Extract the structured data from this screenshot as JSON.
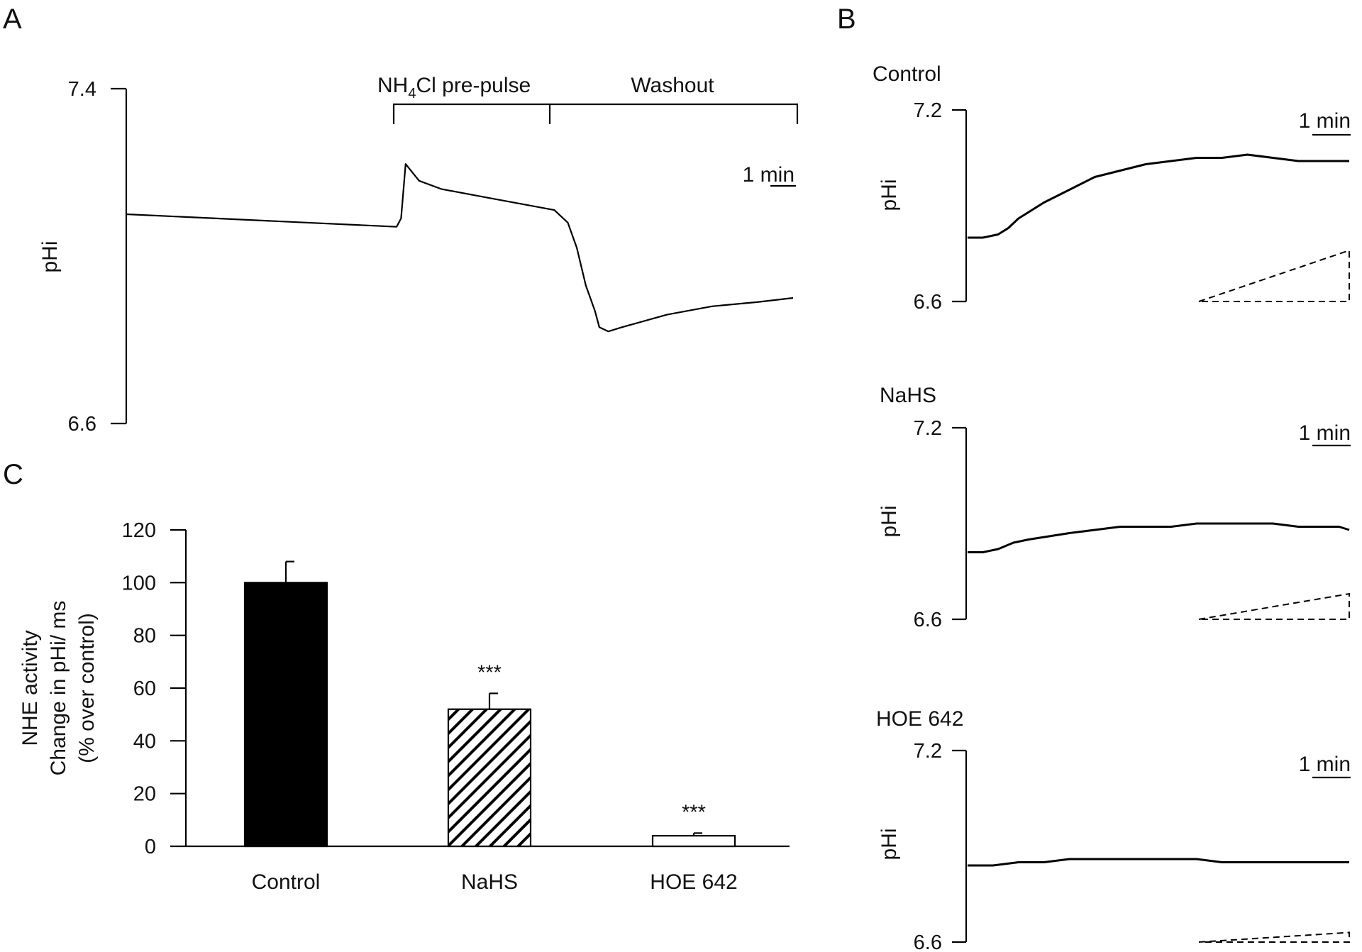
{
  "panel_labels": {
    "a": "A",
    "b": "B",
    "c": "C"
  },
  "chart_data": [
    {
      "id": "A",
      "type": "line",
      "ylabel": "pHi",
      "ylim": [
        6.6,
        7.4
      ],
      "yticks": [
        "7.4",
        "6.6"
      ],
      "x_unit": "min",
      "scale_bar": "1 min",
      "annotations": {
        "prepulse": {
          "pre": "NH",
          "sub": "4",
          "post": "Cl pre-pulse"
        },
        "washout": "Washout"
      },
      "series": [
        {
          "name": "pHi",
          "x": [
            0,
            2,
            4,
            6,
            6.1,
            6.2,
            6.5,
            7,
            8,
            9,
            9.5,
            9.8,
            10,
            10.2,
            10.4,
            10.5,
            10.7,
            11,
            12,
            13,
            14,
            14.8
          ],
          "y": [
            7.1,
            7.09,
            7.08,
            7.07,
            7.09,
            7.22,
            7.18,
            7.16,
            7.14,
            7.12,
            7.11,
            7.08,
            7.02,
            6.93,
            6.87,
            6.83,
            6.82,
            6.83,
            6.86,
            6.88,
            6.89,
            6.9
          ]
        }
      ]
    },
    {
      "id": "B-control",
      "type": "line",
      "title": "Control",
      "ylabel": "pHi",
      "ylim": [
        6.6,
        7.2
      ],
      "yticks": [
        "7.2",
        "6.6"
      ],
      "scale_bar": "1 min",
      "series": [
        {
          "name": "pHi",
          "x": [
            0,
            0.3,
            0.6,
            0.8,
            1.0,
            1.2,
            1.5,
            2.0,
            2.5,
            3.0,
            3.5,
            4.0,
            4.5,
            5.0,
            5.5,
            6.0,
            6.5,
            7.0,
            7.5
          ],
          "y": [
            6.8,
            6.8,
            6.81,
            6.83,
            6.86,
            6.88,
            6.91,
            6.95,
            6.99,
            7.01,
            7.03,
            7.04,
            7.05,
            7.05,
            7.06,
            7.05,
            7.04,
            7.04,
            7.04
          ]
        }
      ],
      "slope_y": [
        6.6,
        6.76
      ]
    },
    {
      "id": "B-nahs",
      "type": "line",
      "title": "NaHS",
      "ylabel": "pHi",
      "ylim": [
        6.6,
        7.2
      ],
      "yticks": [
        "7.2",
        "6.6"
      ],
      "scale_bar": "1 min",
      "series": [
        {
          "name": "pHi",
          "x": [
            0,
            0.3,
            0.6,
            0.9,
            1.2,
            1.6,
            2.0,
            2.5,
            3.0,
            3.5,
            4.0,
            4.5,
            5.0,
            5.5,
            6.0,
            6.5,
            7.0,
            7.3,
            7.5
          ],
          "y": [
            6.81,
            6.81,
            6.82,
            6.84,
            6.85,
            6.86,
            6.87,
            6.88,
            6.89,
            6.89,
            6.89,
            6.9,
            6.9,
            6.9,
            6.9,
            6.89,
            6.89,
            6.89,
            6.88
          ]
        }
      ],
      "slope_y": [
        6.6,
        6.68
      ]
    },
    {
      "id": "B-hoe",
      "type": "line",
      "title": "HOE 642",
      "ylabel": "pHi",
      "ylim": [
        6.6,
        7.2
      ],
      "yticks": [
        "7.2",
        "6.6"
      ],
      "scale_bar": "1 min",
      "series": [
        {
          "name": "pHi",
          "x": [
            0,
            0.5,
            1.0,
            1.5,
            2.0,
            2.5,
            3.0,
            3.5,
            4.0,
            4.5,
            5.0,
            5.5,
            6.0,
            6.5,
            7.0,
            7.5
          ],
          "y": [
            6.84,
            6.84,
            6.85,
            6.85,
            6.86,
            6.86,
            6.86,
            6.86,
            6.86,
            6.86,
            6.85,
            6.85,
            6.85,
            6.85,
            6.85,
            6.85
          ]
        }
      ],
      "slope_y": [
        6.6,
        6.63
      ]
    },
    {
      "id": "C",
      "type": "bar",
      "categories": [
        "Control",
        "NaHS",
        "HOE 642"
      ],
      "values": [
        100,
        52,
        4
      ],
      "errors": [
        8,
        6,
        1
      ],
      "significance": [
        "",
        "***",
        "***"
      ],
      "fills": [
        "solid",
        "hatched",
        "open"
      ],
      "ylabel_lines": [
        "NHE activity",
        "Change in pHi/ ms",
        "(% over control)"
      ],
      "ylim": [
        0,
        120
      ],
      "yticks": [
        0,
        20,
        40,
        60,
        80,
        100,
        120
      ]
    }
  ]
}
